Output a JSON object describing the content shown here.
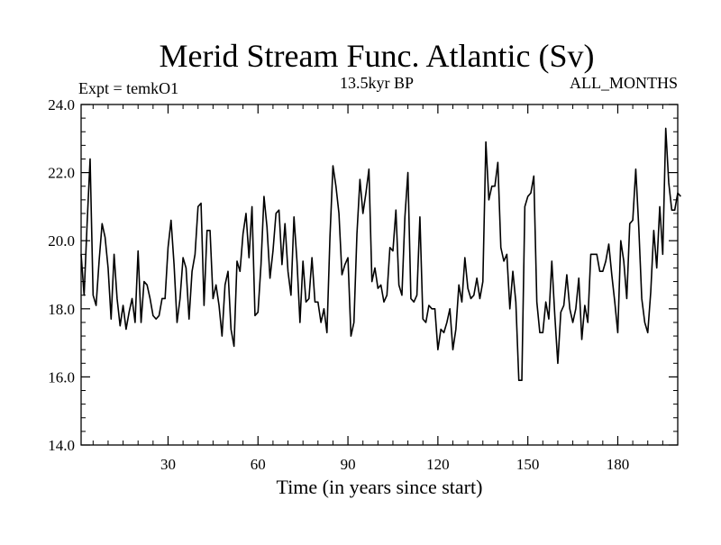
{
  "chart_data": {
    "type": "line",
    "title": "Merid Stream Func. Atlantic (Sv)",
    "subtitle_left": "Expt = temkO1",
    "subtitle_center": "13.5kyr BP",
    "subtitle_right": "ALL_MONTHS",
    "xlabel": "Time (in years since start)",
    "ylabel": "",
    "xlim": [
      1,
      200
    ],
    "ylim": [
      14,
      24
    ],
    "x_ticks": [
      30,
      60,
      90,
      120,
      150,
      180
    ],
    "x_tick_labels": [
      "30",
      "60",
      "90",
      "120",
      "150",
      "180"
    ],
    "y_ticks": [
      14,
      16,
      18,
      20,
      22,
      24
    ],
    "y_tick_labels": [
      "14.0",
      "16.0",
      "18.0",
      "20.0",
      "22.0",
      "24.0"
    ],
    "x_minor_step": 5,
    "y_minor_step": 0.4,
    "grid": false,
    "series": [
      {
        "name": "Merid Stream Func. Atlantic",
        "color": "#000000",
        "values": [
          19.6,
          18.4,
          20.5,
          22.4,
          18.4,
          18.1,
          19.4,
          20.5,
          20.1,
          19.2,
          17.7,
          19.6,
          18.3,
          17.5,
          18.1,
          17.4,
          17.9,
          18.3,
          17.6,
          19.7,
          17.6,
          18.8,
          18.7,
          18.3,
          17.8,
          17.7,
          17.8,
          18.3,
          18.3,
          19.8,
          20.6,
          19.3,
          17.6,
          18.3,
          19.5,
          19.2,
          17.7,
          19.1,
          19.6,
          21.0,
          21.1,
          18.1,
          20.3,
          20.3,
          18.3,
          18.7,
          18.1,
          17.2,
          18.7,
          19.1,
          17.4,
          16.9,
          19.4,
          19.1,
          20.2,
          20.8,
          19.5,
          21.0,
          17.8,
          17.9,
          19.3,
          21.3,
          20.4,
          18.9,
          19.7,
          20.8,
          20.9,
          19.3,
          20.5,
          19.1,
          18.4,
          20.7,
          19.4,
          17.6,
          19.4,
          18.2,
          18.3,
          19.5,
          18.2,
          18.2,
          17.6,
          18.0,
          17.3,
          20.1,
          22.2,
          21.6,
          20.8,
          19.0,
          19.3,
          19.5,
          17.2,
          17.6,
          20.2,
          21.8,
          20.8,
          21.4,
          22.1,
          18.8,
          19.2,
          18.6,
          18.7,
          18.2,
          18.4,
          19.8,
          19.7,
          20.9,
          18.7,
          18.4,
          20.7,
          22.0,
          18.3,
          18.2,
          18.4,
          20.7,
          17.7,
          17.6,
          18.1,
          18.0,
          18.0,
          16.8,
          17.4,
          17.3,
          17.6,
          18.0,
          16.8,
          17.4,
          18.7,
          18.2,
          19.5,
          18.6,
          18.3,
          18.4,
          18.9,
          18.3,
          18.8,
          22.9,
          21.2,
          21.6,
          21.6,
          22.3,
          19.8,
          19.4,
          19.6,
          18.0,
          19.1,
          18.2,
          15.9,
          15.9,
          21.0,
          21.3,
          21.4,
          21.9,
          18.2,
          17.3,
          17.3,
          18.2,
          17.7,
          19.4,
          17.8,
          16.4,
          17.9,
          18.1,
          19.0,
          18.0,
          17.6,
          18.0,
          18.9,
          17.1,
          18.1,
          17.6,
          19.6,
          19.6,
          19.6,
          19.1,
          19.1,
          19.4,
          19.9,
          19.0,
          18.2,
          17.3,
          20.0,
          19.4,
          18.3,
          20.5,
          20.6,
          22.1,
          20.4,
          18.3,
          17.6,
          17.3,
          18.5,
          20.3,
          19.2,
          21.0,
          19.6,
          23.3,
          21.7,
          20.9,
          20.9,
          21.4,
          21.3
        ]
      }
    ]
  }
}
